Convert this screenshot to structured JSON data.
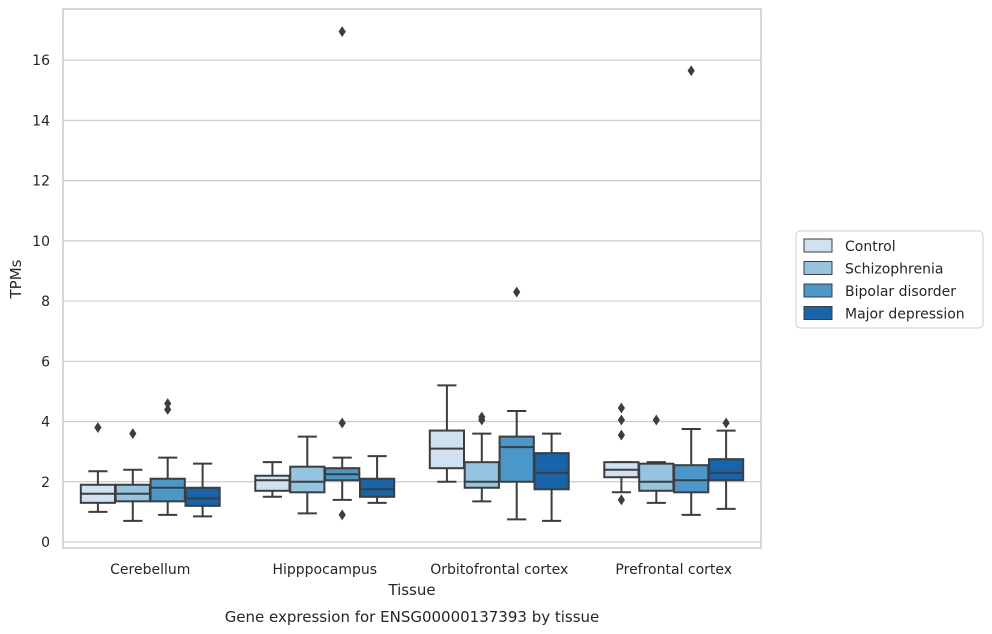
{
  "chart_data": {
    "type": "box",
    "title": "",
    "caption": "Gene expression for ENSG00000137393 by tissue",
    "xlabel": "Tissue",
    "ylabel": "TPMs",
    "ylim": [
      -0.2,
      17.7
    ],
    "yticks": [
      0,
      2,
      4,
      6,
      8,
      10,
      12,
      14,
      16
    ],
    "grid": "horizontal",
    "legend_position": "right",
    "categories": [
      "Cerebellum",
      "Hipppocampus",
      "Orbitofrontal cortex",
      "Prefrontal cortex"
    ],
    "series": [
      {
        "name": "Control",
        "color": "#d0e1f2",
        "boxes": [
          {
            "q1": 1.3,
            "median": 1.6,
            "q3": 1.9,
            "whisker_low": 1.0,
            "whisker_high": 2.35,
            "outliers": [
              3.8
            ]
          },
          {
            "q1": 1.7,
            "median": 2.05,
            "q3": 2.2,
            "whisker_low": 1.5,
            "whisker_high": 2.65,
            "outliers": []
          },
          {
            "q1": 2.45,
            "median": 3.1,
            "q3": 3.7,
            "whisker_low": 2.0,
            "whisker_high": 5.2,
            "outliers": []
          },
          {
            "q1": 2.15,
            "median": 2.4,
            "q3": 2.65,
            "whisker_low": 1.65,
            "whisker_high": 2.65,
            "outliers": [
              1.4,
              3.55,
              4.05,
              4.45
            ]
          }
        ]
      },
      {
        "name": "Schizophrenia",
        "color": "#94c4df",
        "boxes": [
          {
            "q1": 1.35,
            "median": 1.6,
            "q3": 1.9,
            "whisker_low": 0.7,
            "whisker_high": 2.4,
            "outliers": [
              3.6
            ]
          },
          {
            "q1": 1.65,
            "median": 2.0,
            "q3": 2.5,
            "whisker_low": 0.95,
            "whisker_high": 3.5,
            "outliers": []
          },
          {
            "q1": 1.8,
            "median": 2.0,
            "q3": 2.65,
            "whisker_low": 1.35,
            "whisker_high": 3.6,
            "outliers": [
              4.05,
              4.15
            ]
          },
          {
            "q1": 1.7,
            "median": 2.0,
            "q3": 2.6,
            "whisker_low": 1.3,
            "whisker_high": 2.65,
            "outliers": [
              4.05
            ]
          }
        ]
      },
      {
        "name": "Bipolar disorder",
        "color": "#4a98c9",
        "boxes": [
          {
            "q1": 1.35,
            "median": 1.8,
            "q3": 2.1,
            "whisker_low": 0.9,
            "whisker_high": 2.8,
            "outliers": [
              4.4,
              4.6
            ]
          },
          {
            "q1": 2.05,
            "median": 2.25,
            "q3": 2.45,
            "whisker_low": 1.4,
            "whisker_high": 2.8,
            "outliers": [
              0.9,
              3.95,
              16.95
            ]
          },
          {
            "q1": 2.0,
            "median": 3.15,
            "q3": 3.5,
            "whisker_low": 0.75,
            "whisker_high": 4.35,
            "outliers": [
              8.3
            ]
          },
          {
            "q1": 1.65,
            "median": 2.05,
            "q3": 2.55,
            "whisker_low": 0.9,
            "whisker_high": 3.75,
            "outliers": [
              15.65
            ]
          }
        ]
      },
      {
        "name": "Major depression",
        "color": "#1764ab",
        "boxes": [
          {
            "q1": 1.2,
            "median": 1.45,
            "q3": 1.8,
            "whisker_low": 0.85,
            "whisker_high": 2.6,
            "outliers": []
          },
          {
            "q1": 1.5,
            "median": 1.75,
            "q3": 2.1,
            "whisker_low": 1.3,
            "whisker_high": 2.85,
            "outliers": []
          },
          {
            "q1": 1.75,
            "median": 2.3,
            "q3": 2.95,
            "whisker_low": 0.7,
            "whisker_high": 3.6,
            "outliers": []
          },
          {
            "q1": 2.05,
            "median": 2.3,
            "q3": 2.75,
            "whisker_low": 1.1,
            "whisker_high": 3.7,
            "outliers": [
              3.95
            ]
          }
        ]
      }
    ]
  }
}
